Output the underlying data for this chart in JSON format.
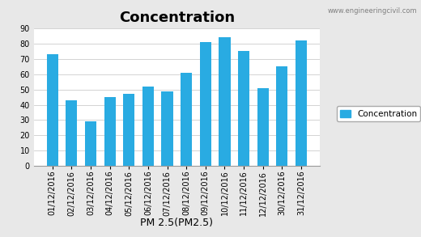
{
  "title": "Concentration",
  "watermark": "www.engineeringcivil.com",
  "xlabel": "PM 2.5(PM2.5)",
  "ylabel": "",
  "categories": [
    "01/12/2016",
    "02/12/2016",
    "03/12/2016",
    "04/12/2016",
    "05/12/2016",
    "06/12/2016",
    "07/12/2016",
    "08/12/2016",
    "09/12/2016",
    "10/12/2016",
    "11/12/2016",
    "12/12/2016",
    "30/12/2016",
    "31/12/2016"
  ],
  "values": [
    73,
    43,
    29,
    45,
    47,
    52,
    49,
    61,
    81,
    84,
    75,
    51,
    65,
    82
  ],
  "bar_color": "#29ABE2",
  "ylim": [
    0,
    90
  ],
  "yticks": [
    0,
    10,
    20,
    30,
    40,
    50,
    60,
    70,
    80,
    90
  ],
  "legend_label": "Concentration",
  "title_fontsize": 13,
  "xlabel_fontsize": 9,
  "tick_fontsize": 7,
  "watermark_fontsize": 6,
  "background_color": "#e8e8e8",
  "plot_bg_color": "#ffffff"
}
